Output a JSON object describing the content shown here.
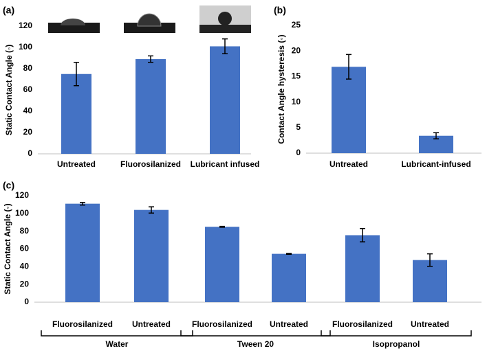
{
  "chart_data": [
    {
      "type": "bar",
      "panel_label": "(a)",
      "ylabel": "Static Contact Angle (◦)",
      "categories": [
        "Untreated",
        "Fluorosilanized",
        "Lubricant infused"
      ],
      "values": [
        75,
        89,
        101
      ],
      "errors": [
        11,
        3,
        7
      ],
      "color": "#4472c4",
      "ylim": [
        0,
        120
      ],
      "yticks": [
        0,
        20,
        40,
        60,
        80,
        100,
        120
      ]
    },
    {
      "type": "bar",
      "panel_label": "(b)",
      "ylabel": "Contact Angle hysteresis (◦)",
      "categories": [
        "Untreated",
        "Lubricant-infused"
      ],
      "values": [
        16.9,
        3.4
      ],
      "errors": [
        2.4,
        0.6
      ],
      "color": "#4472c4",
      "ylim": [
        0,
        25
      ],
      "yticks": [
        0,
        5,
        10,
        15,
        20,
        25
      ]
    },
    {
      "type": "bar",
      "panel_label": "(c)",
      "ylabel": "Static Contact Angle (◦)",
      "categories": [
        "Fluorosilanized",
        "Untreated",
        "Fluorosilanized",
        "Untreated",
        "Fluorosilanized",
        "Untreated"
      ],
      "groups": [
        "Water",
        "Tween 20",
        "Isopropanol"
      ],
      "values": [
        111,
        104,
        85,
        54.5,
        75.5,
        47.5
      ],
      "errors": [
        1.5,
        3.5,
        0.5,
        0.5,
        7.5,
        7
      ],
      "color": "#4472c4",
      "ylim": [
        0,
        120
      ],
      "yticks": [
        0,
        20,
        40,
        60,
        80,
        100,
        120
      ]
    }
  ]
}
